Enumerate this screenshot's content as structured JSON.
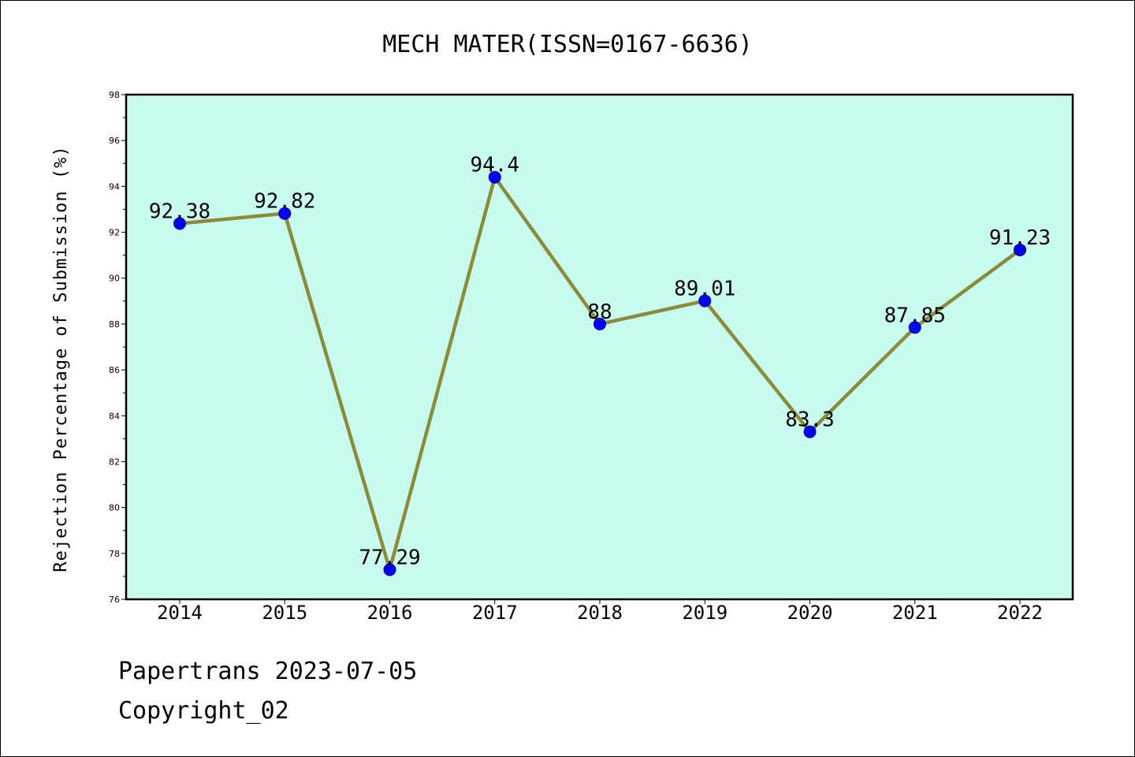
{
  "chart_data": {
    "type": "line",
    "title": "MECH MATER(ISSN=0167-6636)",
    "xlabel": "",
    "ylabel": "Rejection Percentage of Submission (%)",
    "categories": [
      "2014",
      "2015",
      "2016",
      "2017",
      "2018",
      "2019",
      "2020",
      "2021",
      "2022"
    ],
    "series": [
      {
        "values": [
          92.38,
          92.82,
          77.29,
          94.4,
          88,
          89.01,
          83.3,
          87.85,
          91.23
        ],
        "data_labels": [
          "92.38",
          "92.82",
          "77.29",
          "94.4",
          "88",
          "89.01",
          "83.3",
          "87.85",
          "91.23"
        ]
      }
    ],
    "ylim": [
      76,
      98
    ],
    "yticks": [
      "76",
      "78",
      "80",
      "82",
      "84",
      "86",
      "88",
      "90",
      "92",
      "94",
      "96",
      "98"
    ],
    "grid": false,
    "legend": "none",
    "colors": {
      "plot_background": "#c8fcee",
      "line": "#8b8b3c",
      "marker": "#0000ff"
    }
  },
  "footer": {
    "line1": "Papertrans 2023-07-05",
    "line2": "Copyright_02"
  }
}
